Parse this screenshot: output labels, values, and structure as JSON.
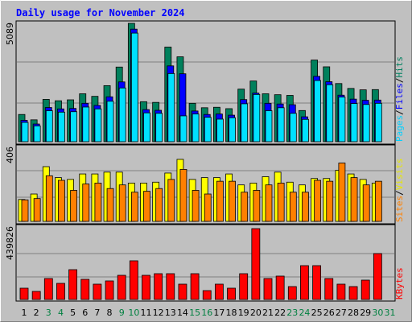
{
  "chart_data": [
    {
      "type": "bar",
      "title": "Daily usage for November 2024",
      "ymax_label": "5089",
      "legend": [
        "Pages",
        "Files",
        "Hits"
      ],
      "legend_separator": "/",
      "categories": [
        "1",
        "2",
        "3",
        "4",
        "5",
        "6",
        "7",
        "8",
        "9",
        "10",
        "11",
        "12",
        "13",
        "14",
        "15",
        "16",
        "17",
        "18",
        "19",
        "20",
        "21",
        "22",
        "23",
        "24",
        "25",
        "26",
        "27",
        "28",
        "29",
        "30",
        "31"
      ],
      "category_colors": [
        "#000000",
        "#000000",
        "#008040",
        "#008040",
        "#000000",
        "#000000",
        "#000000",
        "#000000",
        "#008040",
        "#008040",
        "#000000",
        "#000000",
        "#000000",
        "#000000",
        "#008040",
        "#008040",
        "#000000",
        "#000000",
        "#000000",
        "#000000",
        "#000000",
        "#000000",
        "#008040",
        "#008040",
        "#000000",
        "#000000",
        "#000000",
        "#000000",
        "#000000",
        "#008040",
        "#008040"
      ],
      "ylim": [
        0,
        5089
      ],
      "series": [
        {
          "name": "Hits",
          "color": "#00805c",
          "values": [
            1170,
            940,
            1820,
            1760,
            1800,
            2060,
            1950,
            2410,
            3210,
            5089,
            1720,
            1690,
            4070,
            3650,
            1650,
            1460,
            1480,
            1420,
            2260,
            2610,
            2060,
            2020,
            1990,
            1340,
            3510,
            3220,
            2500,
            2290,
            2230,
            2240,
            0
          ]
        },
        {
          "name": "Files",
          "color": "#0000ff",
          "values": [
            920,
            760,
            1470,
            1410,
            1430,
            1650,
            1560,
            1930,
            2570,
            4840,
            1380,
            1350,
            3260,
            2920,
            1320,
            1170,
            1190,
            1140,
            1810,
            2090,
            1650,
            1620,
            1590,
            1070,
            2810,
            2580,
            2000,
            1830,
            1780,
            1790,
            0
          ]
        },
        {
          "name": "Pages",
          "color": "#00e0ff",
          "values": [
            830,
            680,
            1330,
            1270,
            1290,
            1490,
            1410,
            1740,
            2310,
            4670,
            1240,
            1220,
            2930,
            1110,
            1190,
            1050,
            970,
            1030,
            1630,
            2030,
            1330,
            1460,
            1220,
            960,
            2630,
            2450,
            1920,
            1640,
            1600,
            1650,
            0
          ]
        }
      ]
    },
    {
      "type": "bar",
      "ymax_label": "406",
      "legend": [
        "Sites",
        "Visits"
      ],
      "legend_separator": "/",
      "ylim": [
        0,
        406
      ],
      "series": [
        {
          "name": "Visits",
          "color": "#ffff00",
          "values": [
            120,
            150,
            300,
            240,
            230,
            260,
            260,
            270,
            270,
            210,
            210,
            215,
            265,
            340,
            230,
            240,
            240,
            260,
            200,
            210,
            245,
            270,
            215,
            200,
            235,
            235,
            280,
            260,
            230,
            210,
            0
          ]
        },
        {
          "name": "Sites",
          "color": "#ff8000",
          "values": [
            118,
            125,
            250,
            225,
            170,
            205,
            210,
            180,
            200,
            160,
            165,
            180,
            230,
            285,
            170,
            150,
            220,
            220,
            160,
            170,
            200,
            210,
            160,
            160,
            225,
            220,
            320,
            240,
            200,
            220,
            0
          ]
        }
      ]
    },
    {
      "type": "bar",
      "ymax_label": "439826",
      "legend": [
        "KBytes"
      ],
      "ylim": [
        0,
        439826
      ],
      "series": [
        {
          "name": "KBytes",
          "color": "#ff0000",
          "values": [
            70000,
            50000,
            130000,
            100000,
            185000,
            125000,
            95000,
            115000,
            150000,
            240000,
            150000,
            160000,
            160000,
            95000,
            160000,
            55000,
            95000,
            70000,
            160000,
            439826,
            130000,
            145000,
            80000,
            210000,
            210000,
            130000,
            95000,
            80000,
            120000,
            285000,
            0
          ]
        }
      ]
    }
  ]
}
